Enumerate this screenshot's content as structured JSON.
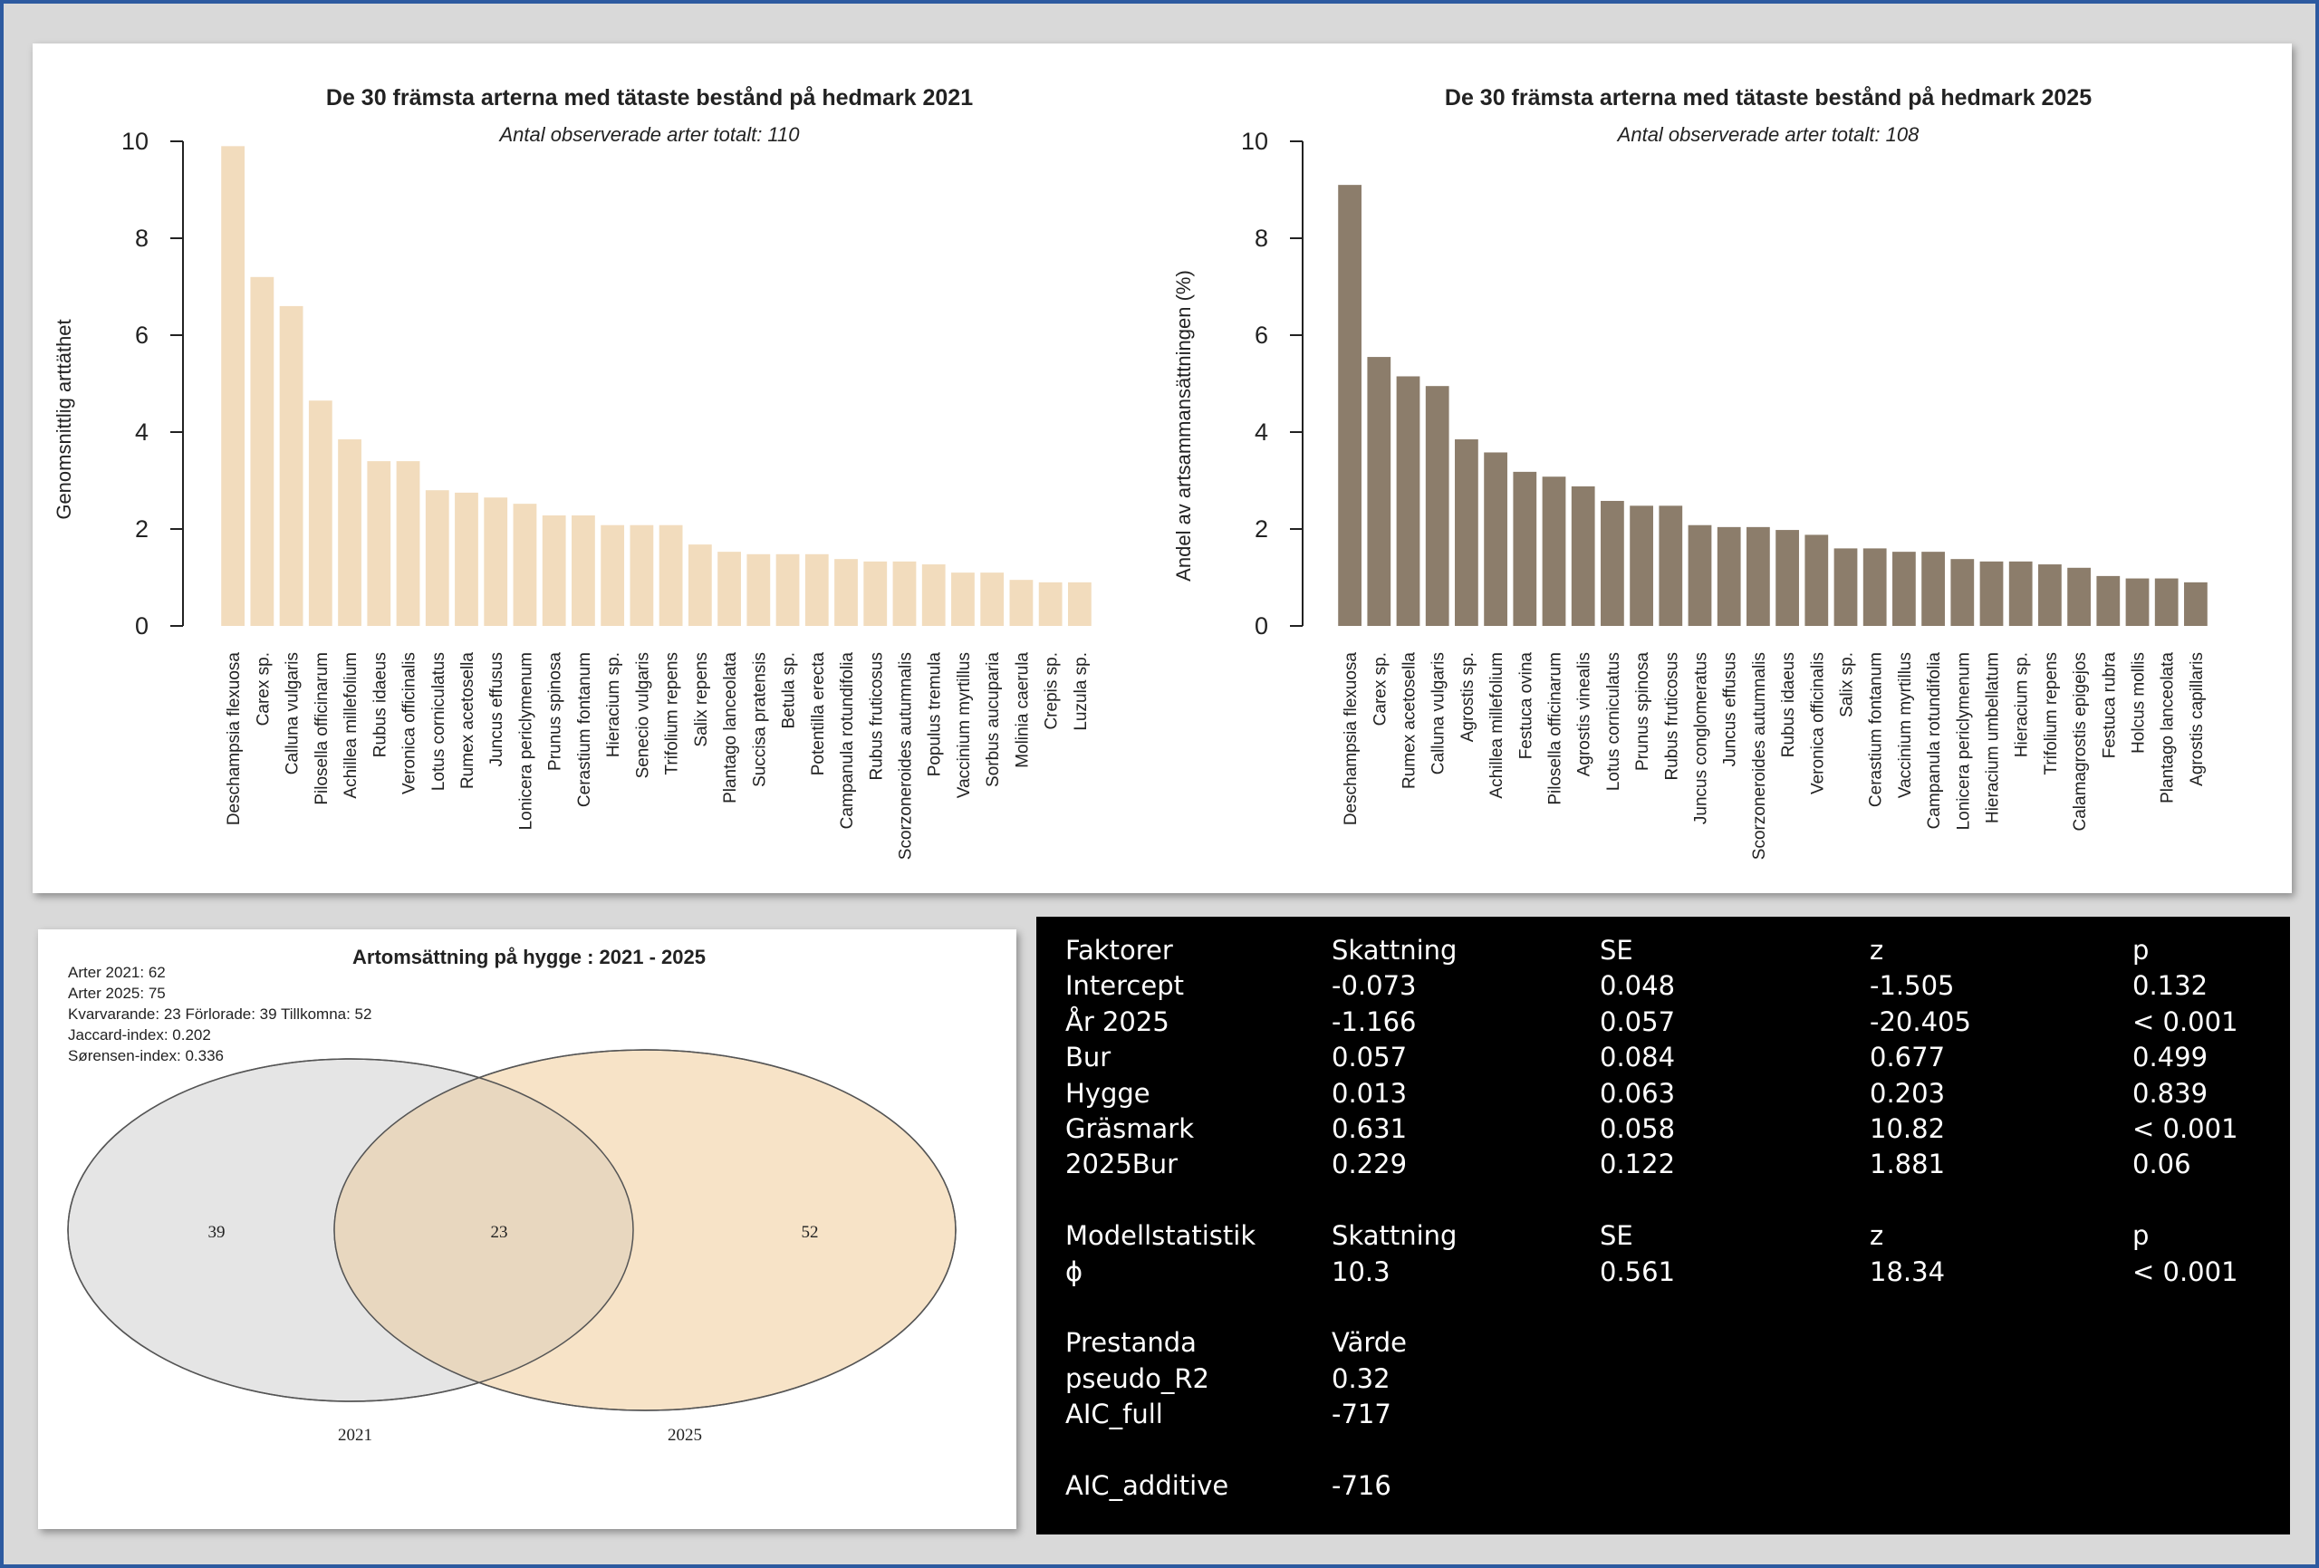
{
  "chart_data": [
    {
      "type": "bar",
      "title": "De 30 främsta arterna med tätaste bestånd på hedmark 2021",
      "subtitle": "Antal observerade arter totalt:  110",
      "ylabel": "Genomsnittlig arttäthet",
      "ylim": [
        0,
        10
      ],
      "yticks": [
        "0",
        "2",
        "4",
        "6",
        "8",
        "10"
      ],
      "color": "#f2dcbd",
      "categories": [
        "Deschampsia flexuosa",
        "Carex sp.",
        "Calluna vulgaris",
        "Pilosella officinarum",
        "Achillea millefolium",
        "Rubus idaeus",
        "Veronica officinalis",
        "Lotus corniculatus",
        "Rumex acetosella",
        "Juncus effusus",
        "Lonicera periclymenum",
        "Prunus spinosa",
        "Cerastium fontanum",
        "Hieracium sp.",
        "Senecio vulgaris",
        "Trifolium repens",
        "Salix repens",
        "Plantago lanceolata",
        "Succisa pratensis",
        "Betula sp.",
        "Potentilla erecta",
        "Campanula rotundifolia",
        "Rubus fruticosus",
        "Scorzoneroides autumnalis",
        "Populus tremula",
        "Vaccinium myrtillus",
        "Sorbus aucuparia",
        "Molinia caerula",
        "Crepis sp.",
        "Luzula sp."
      ],
      "values": [
        9.9,
        7.2,
        6.6,
        4.65,
        3.85,
        3.4,
        3.4,
        2.8,
        2.75,
        2.65,
        2.52,
        2.28,
        2.28,
        2.08,
        2.08,
        2.08,
        1.68,
        1.53,
        1.48,
        1.48,
        1.48,
        1.38,
        1.33,
        1.33,
        1.27,
        1.1,
        1.1,
        0.95,
        0.9,
        0.9
      ]
    },
    {
      "type": "bar",
      "title": "De 30 främsta arterna med tätaste bestånd på hedmark 2025",
      "subtitle": "Antal observerade arter totalt:  108",
      "ylabel": "Andel av artsammansättningen (%)",
      "ylim": [
        0,
        10
      ],
      "yticks": [
        "0",
        "2",
        "4",
        "6",
        "8",
        "10"
      ],
      "color": "#8c7d6b",
      "categories": [
        "Deschampsia flexuosa",
        "Carex sp.",
        "Rumex acetosella",
        "Calluna vulgaris",
        "Agrostis sp.",
        "Achillea millefolium",
        "Festuca ovina",
        "Pilosella officinarum",
        "Agrostis vinealis",
        "Lotus corniculatus",
        "Prunus spinosa",
        "Rubus fruticosus",
        "Juncus conglomeratus",
        "Juncus effusus",
        "Scorzoneroides autumnalis",
        "Rubus idaeus",
        "Veronica officinalis",
        "Salix sp.",
        "Cerastium fontanum",
        "Vaccinium myrtillus",
        "Campanula rotundifolia",
        "Lonicera periclymenum",
        "Hieracium umbellatum",
        "Hieracium sp.",
        "Trifolium repens",
        "Calamagrostis epigejos",
        "Festuca rubra",
        "Holcus mollis",
        "Plantago lanceolata",
        "Agrostis capillaris"
      ],
      "values": [
        9.1,
        5.55,
        5.15,
        4.95,
        3.85,
        3.58,
        3.18,
        3.08,
        2.88,
        2.58,
        2.48,
        2.48,
        2.08,
        2.04,
        2.04,
        1.98,
        1.88,
        1.6,
        1.6,
        1.53,
        1.53,
        1.38,
        1.33,
        1.33,
        1.27,
        1.2,
        1.03,
        0.98,
        0.98,
        0.9
      ]
    },
    {
      "type": "venn",
      "title": "Artomsättning på hygge : 2021 - 2025",
      "info": [
        "Arter 2021: 62",
        "Arter 2025: 75",
        "Kvarvarande: 23  Förlorade: 39  Tillkomna: 52",
        "Jaccard-index: 0.202",
        "Sørensen-index: 0.336"
      ],
      "sets": [
        {
          "name": "2021",
          "only": "39",
          "color": "#e5e5e5"
        },
        {
          "name": "2025",
          "only": "52",
          "color": "#f7e3c7"
        }
      ],
      "intersection": "23",
      "intersection_color": "#e8d7bf"
    },
    {
      "type": "table",
      "rows": [
        [
          "Faktorer",
          "Skattning",
          "SE",
          "z",
          "p"
        ],
        [
          "Intercept",
          "-0.073",
          "0.048",
          "-1.505",
          "0.132"
        ],
        [
          "År 2025",
          "-1.166",
          "0.057",
          "-20.405",
          "< 0.001"
        ],
        [
          "Bur",
          "0.057",
          "0.084",
          "0.677",
          "0.499"
        ],
        [
          "Hygge",
          "0.013",
          "0.063",
          "0.203",
          "0.839"
        ],
        [
          "Gräsmark",
          "0.631",
          "0.058",
          "10.82",
          "< 0.001"
        ],
        [
          "2025Bur",
          "0.229",
          "0.122",
          "1.881",
          "0.06"
        ],
        [
          "",
          "",
          "",
          "",
          ""
        ],
        [
          "Modellstatistik",
          "Skattning",
          "SE",
          "z",
          "p"
        ],
        [
          "ϕ",
          "10.3",
          "0.561",
          "18.34",
          " < 0.001"
        ],
        [
          "",
          "",
          "",
          "",
          ""
        ],
        [
          "Prestanda",
          "Värde",
          "",
          "",
          ""
        ],
        [
          "pseudo_R2",
          "0.32",
          "",
          "",
          ""
        ],
        [
          "AIC_full",
          "-717",
          "",
          "",
          ""
        ],
        [
          "",
          "",
          "",
          "",
          ""
        ],
        [
          "AIC_additive",
          "-716",
          "",
          "",
          ""
        ]
      ]
    }
  ]
}
